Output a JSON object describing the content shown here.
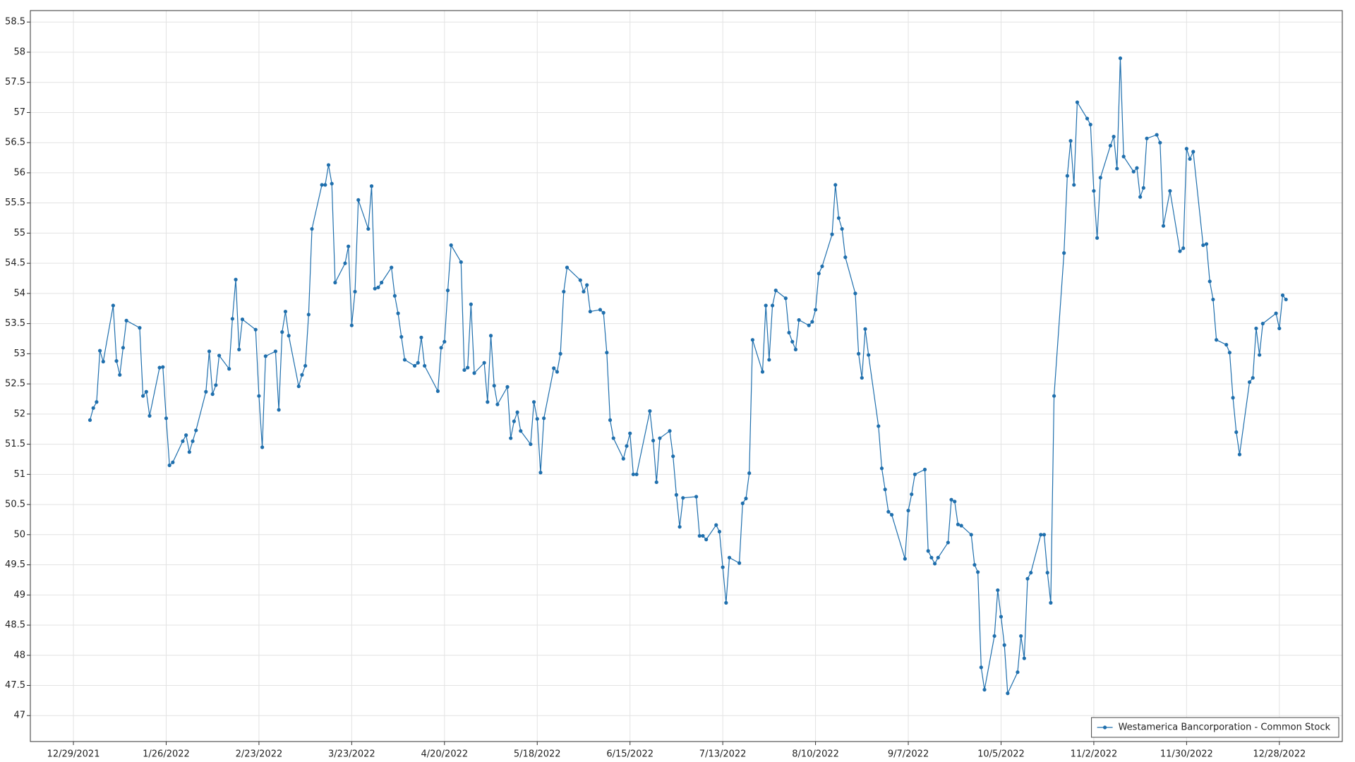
{
  "chart_data": {
    "type": "line",
    "x": [
      "1/3/2022",
      "1/4/2022",
      "1/5/2022",
      "1/6/2022",
      "1/7/2022",
      "1/10/2022",
      "1/11/2022",
      "1/12/2022",
      "1/13/2022",
      "1/14/2022",
      "1/18/2022",
      "1/19/2022",
      "1/20/2022",
      "1/21/2022",
      "1/24/2022",
      "1/25/2022",
      "1/26/2022",
      "1/27/2022",
      "1/28/2022",
      "1/31/2022",
      "2/1/2022",
      "2/2/2022",
      "2/3/2022",
      "2/4/2022",
      "2/7/2022",
      "2/8/2022",
      "2/9/2022",
      "2/10/2022",
      "2/11/2022",
      "2/14/2022",
      "2/15/2022",
      "2/16/2022",
      "2/17/2022",
      "2/18/2022",
      "2/22/2022",
      "2/23/2022",
      "2/24/2022",
      "2/25/2022",
      "2/28/2022",
      "3/1/2022",
      "3/2/2022",
      "3/3/2022",
      "3/4/2022",
      "3/7/2022",
      "3/8/2022",
      "3/9/2022",
      "3/10/2022",
      "3/11/2022",
      "3/14/2022",
      "3/15/2022",
      "3/16/2022",
      "3/17/2022",
      "3/18/2022",
      "3/21/2022",
      "3/22/2022",
      "3/23/2022",
      "3/24/2022",
      "3/25/2022",
      "3/28/2022",
      "3/29/2022",
      "3/30/2022",
      "3/31/2022",
      "4/1/2022",
      "4/4/2022",
      "4/5/2022",
      "4/6/2022",
      "4/7/2022",
      "4/8/2022",
      "4/11/2022",
      "4/12/2022",
      "4/13/2022",
      "4/14/2022",
      "4/18/2022",
      "4/19/2022",
      "4/20/2022",
      "4/21/2022",
      "4/22/2022",
      "4/25/2022",
      "4/26/2022",
      "4/27/2022",
      "4/28/2022",
      "4/29/2022",
      "5/2/2022",
      "5/3/2022",
      "5/4/2022",
      "5/5/2022",
      "5/6/2022",
      "5/9/2022",
      "5/10/2022",
      "5/11/2022",
      "5/12/2022",
      "5/13/2022",
      "5/16/2022",
      "5/17/2022",
      "5/18/2022",
      "5/19/2022",
      "5/20/2022",
      "5/23/2022",
      "5/24/2022",
      "5/25/2022",
      "5/26/2022",
      "5/27/2022",
      "5/31/2022",
      "6/1/2022",
      "6/2/2022",
      "6/3/2022",
      "6/6/2022",
      "6/7/2022",
      "6/8/2022",
      "6/9/2022",
      "6/10/2022",
      "6/13/2022",
      "6/14/2022",
      "6/15/2022",
      "6/16/2022",
      "6/17/2022",
      "6/21/2022",
      "6/22/2022",
      "6/23/2022",
      "6/24/2022",
      "6/27/2022",
      "6/28/2022",
      "6/29/2022",
      "6/30/2022",
      "7/1/2022",
      "7/5/2022",
      "7/6/2022",
      "7/7/2022",
      "7/8/2022",
      "7/11/2022",
      "7/12/2022",
      "7/13/2022",
      "7/14/2022",
      "7/15/2022",
      "7/18/2022",
      "7/19/2022",
      "7/20/2022",
      "7/21/2022",
      "7/22/2022",
      "7/25/2022",
      "7/26/2022",
      "7/27/2022",
      "7/28/2022",
      "7/29/2022",
      "8/1/2022",
      "8/2/2022",
      "8/3/2022",
      "8/4/2022",
      "8/5/2022",
      "8/8/2022",
      "8/9/2022",
      "8/10/2022",
      "8/11/2022",
      "8/12/2022",
      "8/15/2022",
      "8/16/2022",
      "8/17/2022",
      "8/18/2022",
      "8/19/2022",
      "8/22/2022",
      "8/23/2022",
      "8/24/2022",
      "8/25/2022",
      "8/26/2022",
      "8/29/2022",
      "8/30/2022",
      "8/31/2022",
      "9/1/2022",
      "9/2/2022",
      "9/6/2022",
      "9/7/2022",
      "9/8/2022",
      "9/9/2022",
      "9/12/2022",
      "9/13/2022",
      "9/14/2022",
      "9/15/2022",
      "9/16/2022",
      "9/19/2022",
      "9/20/2022",
      "9/21/2022",
      "9/22/2022",
      "9/23/2022",
      "9/26/2022",
      "9/27/2022",
      "9/28/2022",
      "9/29/2022",
      "9/30/2022",
      "10/3/2022",
      "10/4/2022",
      "10/5/2022",
      "10/6/2022",
      "10/7/2022",
      "10/10/2022",
      "10/11/2022",
      "10/12/2022",
      "10/13/2022",
      "10/14/2022",
      "10/17/2022",
      "10/18/2022",
      "10/19/2022",
      "10/20/2022",
      "10/21/2022",
      "10/24/2022",
      "10/25/2022",
      "10/26/2022",
      "10/27/2022",
      "10/28/2022",
      "10/31/2022",
      "11/1/2022",
      "11/2/2022",
      "11/3/2022",
      "11/4/2022",
      "11/7/2022",
      "11/8/2022",
      "11/9/2022",
      "11/10/2022",
      "11/11/2022",
      "11/14/2022",
      "11/15/2022",
      "11/16/2022",
      "11/17/2022",
      "11/18/2022",
      "11/21/2022",
      "11/22/2022",
      "11/23/2022",
      "11/25/2022",
      "11/28/2022",
      "11/29/2022",
      "11/30/2022",
      "12/1/2022",
      "12/2/2022",
      "12/5/2022",
      "12/6/2022",
      "12/7/2022",
      "12/8/2022",
      "12/9/2022",
      "12/12/2022",
      "12/13/2022",
      "12/14/2022",
      "12/15/2022",
      "12/16/2022",
      "12/19/2022",
      "12/20/2022",
      "12/21/2022",
      "12/22/2022",
      "12/23/2022",
      "12/27/2022",
      "12/28/2022",
      "12/29/2022",
      "12/30/2022"
    ],
    "series": [
      {
        "name": "Westamerica Bancorporation - Common Stock",
        "color": "#1f6fad",
        "values": [
          51.9,
          52.1,
          52.2,
          53.05,
          52.87,
          53.8,
          52.88,
          52.65,
          53.1,
          53.55,
          53.43,
          52.3,
          52.37,
          51.97,
          52.77,
          52.78,
          51.93,
          51.15,
          51.2,
          51.55,
          51.65,
          51.37,
          51.55,
          51.73,
          52.37,
          53.04,
          52.33,
          52.48,
          52.97,
          52.75,
          53.58,
          54.23,
          53.07,
          53.57,
          53.4,
          52.3,
          51.45,
          52.96,
          53.04,
          52.07,
          53.36,
          53.7,
          53.3,
          52.46,
          52.65,
          52.8,
          53.65,
          55.07,
          55.8,
          55.8,
          56.13,
          55.82,
          54.18,
          54.5,
          54.78,
          53.47,
          54.03,
          55.55,
          55.07,
          55.78,
          54.08,
          54.1,
          54.18,
          54.43,
          53.96,
          53.67,
          53.28,
          52.9,
          52.8,
          52.85,
          53.27,
          52.8,
          52.38,
          53.1,
          53.2,
          54.05,
          54.8,
          54.52,
          52.73,
          52.77,
          53.82,
          52.68,
          52.85,
          52.2,
          53.3,
          52.47,
          52.16,
          52.45,
          51.6,
          51.88,
          52.03,
          51.72,
          51.5,
          52.2,
          51.92,
          51.03,
          51.93,
          52.76,
          52.7,
          53.0,
          54.03,
          54.43,
          54.22,
          54.03,
          54.14,
          53.7,
          53.73,
          53.68,
          53.02,
          51.9,
          51.6,
          51.26,
          51.47,
          51.68,
          51.0,
          51.0,
          52.05,
          51.56,
          50.87,
          51.6,
          51.72,
          51.3,
          50.66,
          50.13,
          50.61,
          50.63,
          49.98,
          49.98,
          49.92,
          50.16,
          50.05,
          49.46,
          48.87,
          49.62,
          49.53,
          50.52,
          50.6,
          51.02,
          53.23,
          52.7,
          53.8,
          52.9,
          53.8,
          54.05,
          53.92,
          53.35,
          53.2,
          53.07,
          53.56,
          53.47,
          53.53,
          53.73,
          54.33,
          54.45,
          54.98,
          55.8,
          55.25,
          55.07,
          54.6,
          54.0,
          53.0,
          52.6,
          53.41,
          52.98,
          51.8,
          51.1,
          50.75,
          50.38,
          50.33,
          49.6,
          50.4,
          50.67,
          51.0,
          51.08,
          49.73,
          49.62,
          49.52,
          49.62,
          49.87,
          50.58,
          50.55,
          50.17,
          50.15,
          50.0,
          49.5,
          49.38,
          47.8,
          47.43,
          48.32,
          49.08,
          48.64,
          48.17,
          47.37,
          47.72,
          48.32,
          47.95,
          49.27,
          49.37,
          50.0,
          50.0,
          49.37,
          48.87,
          52.3,
          54.67,
          55.95,
          56.53,
          55.8,
          57.17,
          56.9,
          56.8,
          55.7,
          54.92,
          55.92,
          56.45,
          56.6,
          56.07,
          57.9,
          56.27,
          56.02,
          56.08,
          55.6,
          55.75,
          56.57,
          56.63,
          56.5,
          55.12,
          55.7,
          54.7,
          54.75,
          56.4,
          56.23,
          56.35,
          54.8,
          54.82,
          54.2,
          53.9,
          53.23,
          53.15,
          53.02,
          52.27,
          51.7,
          51.33,
          52.53,
          52.6,
          53.42,
          52.98,
          53.5,
          53.67,
          53.42,
          53.97,
          53.9
        ]
      }
    ],
    "xlim": [
      "12/16/2021",
      "1/16/2023"
    ],
    "xticks": [
      "12/29/2021",
      "1/26/2022",
      "2/23/2022",
      "3/23/2022",
      "4/20/2022",
      "5/18/2022",
      "6/15/2022",
      "7/13/2022",
      "8/10/2022",
      "9/7/2022",
      "10/5/2022",
      "11/2/2022",
      "11/30/2022",
      "12/28/2022"
    ],
    "ylim": [
      46.57,
      58.69
    ],
    "yticks": [
      47,
      47.5,
      48,
      48.5,
      49,
      49.5,
      50,
      50.5,
      51,
      51.5,
      52,
      52.5,
      53,
      53.5,
      54,
      54.5,
      55,
      55.5,
      56,
      56.5,
      57,
      57.5,
      58,
      58.5
    ],
    "grid": true,
    "legend": "lower right"
  }
}
